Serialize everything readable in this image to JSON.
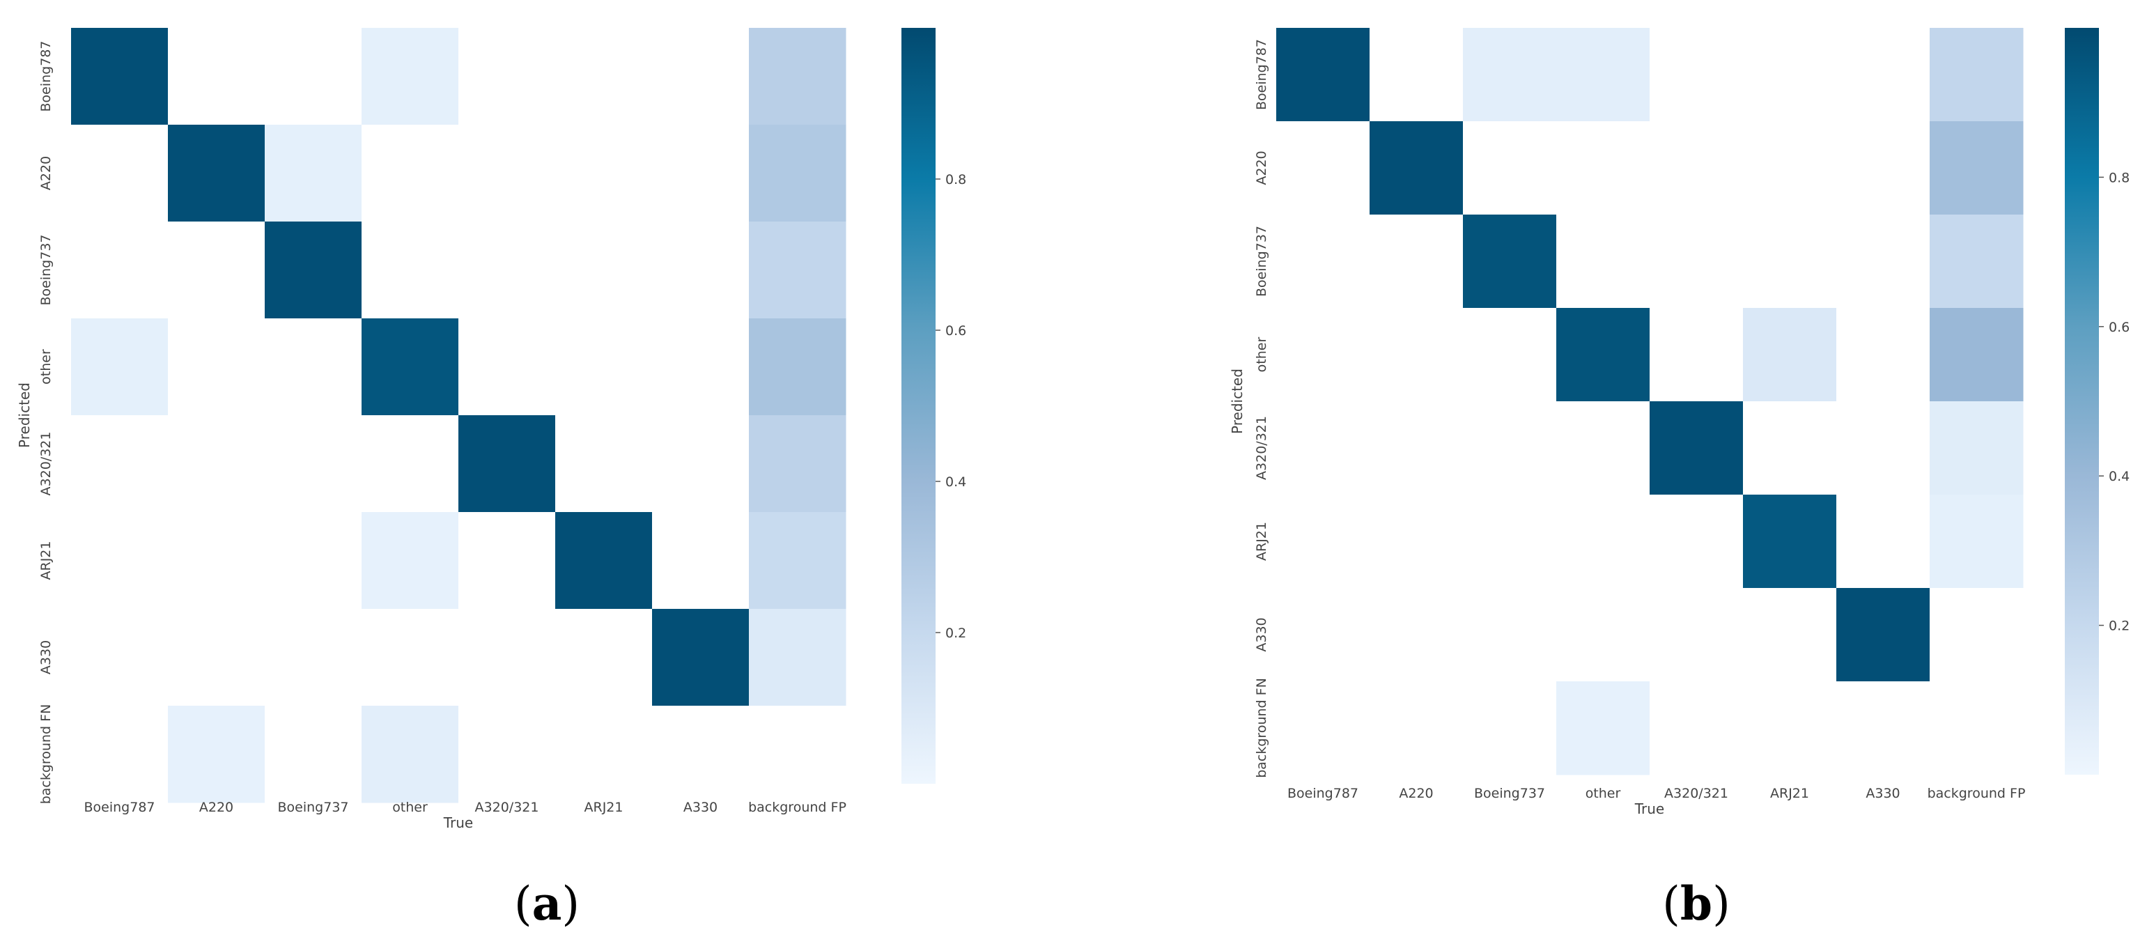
{
  "chart_data": [
    {
      "type": "heatmap",
      "panel_label": "(a)",
      "panel_letter": "a",
      "xlabel": "True",
      "ylabel": "Predicted",
      "x_categories": [
        "Boeing787",
        "A220",
        "Boeing737",
        "other",
        "A320/321",
        "ARJ21",
        "A330",
        "background FP"
      ],
      "y_categories": [
        "Boeing787",
        "A220",
        "Boeing737",
        "other",
        "A320/321",
        "ARJ21",
        "A330",
        "background FN"
      ],
      "values": [
        [
          0.98,
          0.0,
          0.0,
          0.05,
          0.0,
          0.0,
          0.0,
          0.26
        ],
        [
          0.0,
          0.98,
          0.05,
          0.0,
          0.0,
          0.0,
          0.0,
          0.3
        ],
        [
          0.0,
          0.0,
          0.98,
          0.0,
          0.0,
          0.0,
          0.0,
          0.22
        ],
        [
          0.05,
          0.0,
          0.0,
          0.95,
          0.0,
          0.0,
          0.0,
          0.33
        ],
        [
          0.0,
          0.0,
          0.0,
          0.0,
          0.98,
          0.0,
          0.0,
          0.24
        ],
        [
          0.0,
          0.0,
          0.0,
          0.04,
          0.0,
          0.98,
          0.0,
          0.19
        ],
        [
          0.0,
          0.0,
          0.0,
          0.0,
          0.0,
          0.0,
          0.98,
          0.09
        ],
        [
          0.0,
          0.04,
          0.0,
          0.06,
          0.0,
          0.0,
          0.0,
          0.0
        ]
      ],
      "colorbar": {
        "range": [
          0,
          1
        ],
        "ticks": [
          0.2,
          0.4,
          0.6,
          0.8
        ],
        "tick_labels": [
          "0.2",
          "0.4",
          "0.6",
          "0.8"
        ]
      },
      "colormap": "Blues-light",
      "grid": false
    },
    {
      "type": "heatmap",
      "panel_label": "(b)",
      "panel_letter": "b",
      "xlabel": "True",
      "ylabel": "Predicted",
      "x_categories": [
        "Boeing787",
        "A220",
        "Boeing737",
        "other",
        "A320/321",
        "ARJ21",
        "A330",
        "background FP"
      ],
      "y_categories": [
        "Boeing787",
        "A220",
        "Boeing737",
        "other",
        "A320/321",
        "ARJ21",
        "A330",
        "background FN"
      ],
      "values": [
        [
          0.98,
          0.0,
          0.06,
          0.06,
          0.0,
          0.0,
          0.0,
          0.22
        ],
        [
          0.0,
          0.98,
          0.0,
          0.0,
          0.0,
          0.0,
          0.0,
          0.36
        ],
        [
          0.0,
          0.0,
          0.96,
          0.0,
          0.0,
          0.0,
          0.0,
          0.2
        ],
        [
          0.0,
          0.0,
          0.0,
          0.96,
          0.0,
          0.1,
          0.0,
          0.4
        ],
        [
          0.0,
          0.0,
          0.0,
          0.0,
          0.98,
          0.0,
          0.0,
          0.07
        ],
        [
          0.0,
          0.0,
          0.0,
          0.0,
          0.0,
          0.94,
          0.0,
          0.05
        ],
        [
          0.0,
          0.0,
          0.0,
          0.0,
          0.0,
          0.0,
          0.98,
          0.0
        ],
        [
          0.0,
          0.0,
          0.0,
          0.04,
          0.0,
          0.0,
          0.0,
          0.0
        ]
      ],
      "colorbar": {
        "range": [
          0,
          1
        ],
        "ticks": [
          0.2,
          0.4,
          0.6,
          0.8
        ],
        "tick_labels": [
          "0.2",
          "0.4",
          "0.6",
          "0.8"
        ]
      },
      "colormap": "Blues-light",
      "grid": false
    }
  ],
  "colors": {
    "low": "#ffffff",
    "light": "#d9ebf9",
    "mid_light": "#a6c3e0",
    "mid": "#6aa7c7",
    "high": "#057aa8",
    "max": "#024a70",
    "text": "#444444"
  }
}
